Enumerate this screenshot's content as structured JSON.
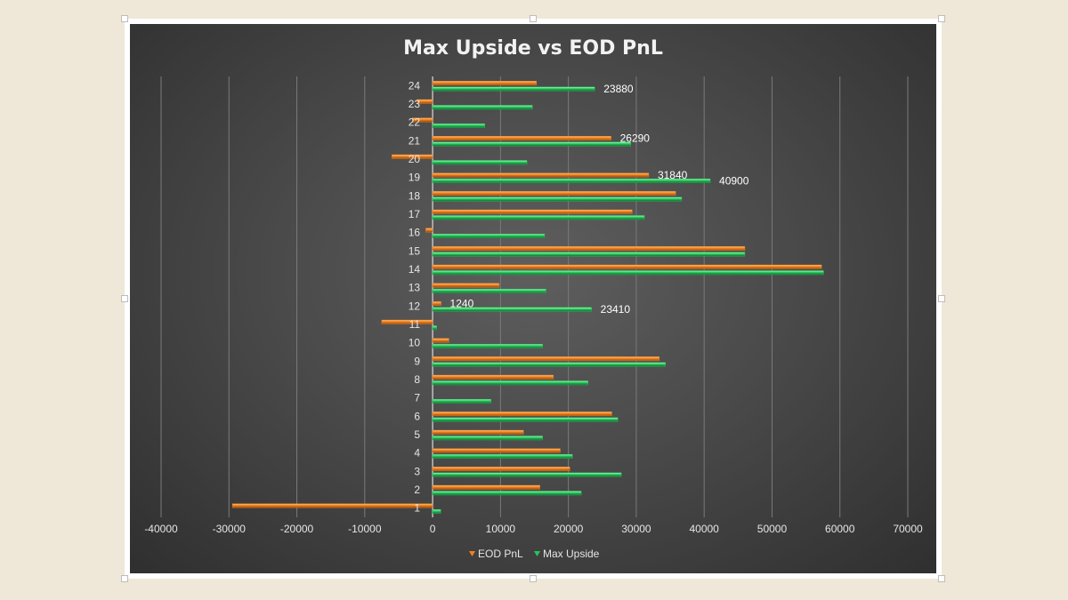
{
  "chart_data": {
    "type": "bar",
    "orientation": "horizontal",
    "title": "Max Upside vs EOD PnL",
    "xlabel": "",
    "ylabel": "",
    "xlim": [
      -40000,
      70000
    ],
    "xticks": [
      "-40000",
      "-30000",
      "-20000",
      "-10000",
      "0",
      "10000",
      "20000",
      "30000",
      "40000",
      "50000",
      "60000",
      "70000"
    ],
    "grid": "vertical",
    "legend": "bottom",
    "categories": [
      "1",
      "2",
      "3",
      "4",
      "5",
      "6",
      "7",
      "8",
      "9",
      "10",
      "11",
      "12",
      "13",
      "14",
      "15",
      "16",
      "17",
      "18",
      "19",
      "20",
      "21",
      "22",
      "23",
      "24"
    ],
    "series": [
      {
        "name": "EOD PnL",
        "color": "#f0821e",
        "values": [
          -29500,
          15800,
          20200,
          18800,
          13400,
          26400,
          0,
          17800,
          33400,
          2400,
          -7500,
          1240,
          9800,
          57300,
          46000,
          -1000,
          29400,
          35800,
          31840,
          -6000,
          26290,
          -3000,
          -2300,
          15300
        ]
      },
      {
        "name": "Max Upside",
        "color": "#27c45a",
        "values": [
          1200,
          21900,
          27800,
          20600,
          16200,
          27300,
          8600,
          22900,
          34300,
          16200,
          600,
          23410,
          16700,
          57600,
          46000,
          16500,
          31200,
          36700,
          40900,
          13900,
          29200,
          7700,
          14700,
          23880
        ]
      }
    ],
    "data_labels": [
      {
        "category": "24",
        "series": "Max Upside",
        "text": "23880"
      },
      {
        "category": "21",
        "series": "EOD PnL",
        "text": "26290"
      },
      {
        "category": "19",
        "series": "EOD PnL",
        "text": "31840"
      },
      {
        "category": "19",
        "series": "Max Upside",
        "text": "40900"
      },
      {
        "category": "12",
        "series": "EOD PnL",
        "text": "1240"
      },
      {
        "category": "12",
        "series": "Max Upside",
        "text": "23410"
      }
    ]
  }
}
